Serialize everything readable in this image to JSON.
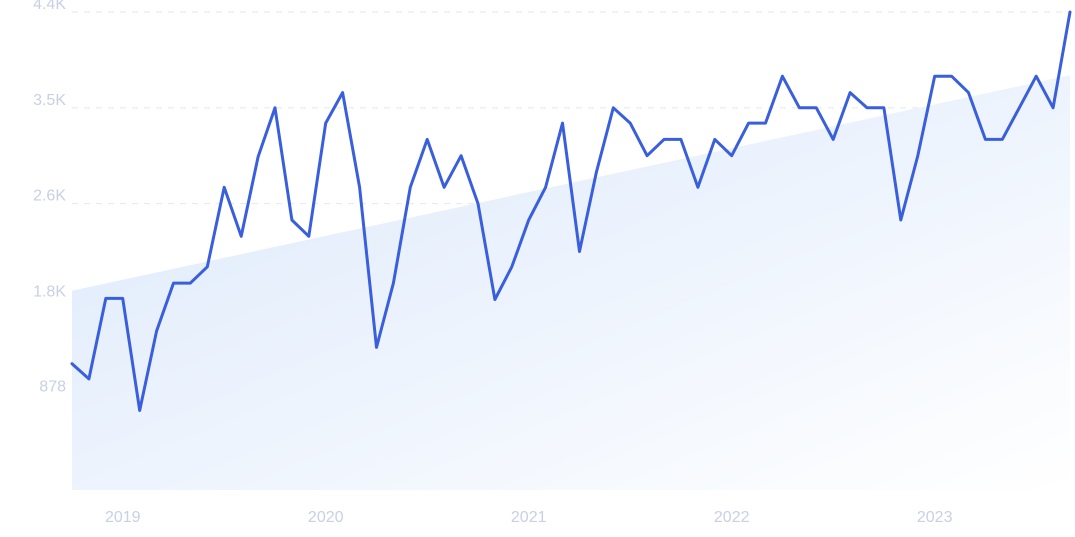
{
  "chart_data": {
    "type": "line",
    "title": "",
    "xlabel": "",
    "ylabel": "",
    "y_ticks": [
      "4.4K",
      "3.5K",
      "2.6K",
      "1.8K",
      "878"
    ],
    "y_tick_values": [
      4390,
      3510,
      2630,
      1750,
      878
    ],
    "ylim": [
      0,
      4390
    ],
    "x_ticks": [
      "2019",
      "2020",
      "2021",
      "2022",
      "2023"
    ],
    "x_tick_values": [
      "2019-01",
      "2020-01",
      "2021-01",
      "2022-01",
      "2023-01"
    ],
    "xlim": [
      "2018-10",
      "2023-09"
    ],
    "grid": true,
    "trend": {
      "start": 1830,
      "end": 3810
    },
    "colors": {
      "line": "#3a5fdc",
      "trend_fill": "#dbe8fb",
      "grid": "#e3e7f1",
      "tick_text": "#c9cfe6"
    },
    "series": [
      {
        "x": [
          "2018-10",
          "2018-11",
          "2018-12",
          "2019-01",
          "2019-02",
          "2019-03",
          "2019-04",
          "2019-05",
          "2019-06",
          "2019-07",
          "2019-08",
          "2019-09",
          "2019-10",
          "2019-11",
          "2019-12",
          "2020-01",
          "2020-02",
          "2020-03",
          "2020-04",
          "2020-05",
          "2020-06",
          "2020-07",
          "2020-08",
          "2020-09",
          "2020-10",
          "2020-11",
          "2020-12",
          "2021-01",
          "2021-02",
          "2021-03",
          "2021-04",
          "2021-05",
          "2021-06",
          "2021-07",
          "2021-08",
          "2021-09",
          "2021-10",
          "2021-11",
          "2021-12",
          "2022-01",
          "2022-02",
          "2022-03",
          "2022-04",
          "2022-05",
          "2022-06",
          "2022-07",
          "2022-08",
          "2022-09",
          "2022-10",
          "2022-11",
          "2022-12",
          "2023-01",
          "2023-02",
          "2023-03",
          "2023-04",
          "2023-05",
          "2023-06",
          "2023-07",
          "2023-08",
          "2023-09"
        ],
        "values": [
          1160,
          1020,
          1760,
          1760,
          730,
          1460,
          1900,
          1900,
          2050,
          2780,
          2330,
          3060,
          3510,
          2480,
          2330,
          3370,
          3650,
          2780,
          1310,
          1900,
          2780,
          3220,
          2780,
          3070,
          2630,
          1750,
          2050,
          2480,
          2780,
          3370,
          2190,
          2920,
          3510,
          3370,
          3070,
          3220,
          3220,
          2780,
          3220,
          3070,
          3370,
          3370,
          3800,
          3510,
          3510,
          3220,
          3650,
          3510,
          3510,
          2480,
          3070,
          3800,
          3800,
          3650,
          3220,
          3220,
          3510,
          3800,
          3510,
          4390
        ]
      }
    ]
  }
}
